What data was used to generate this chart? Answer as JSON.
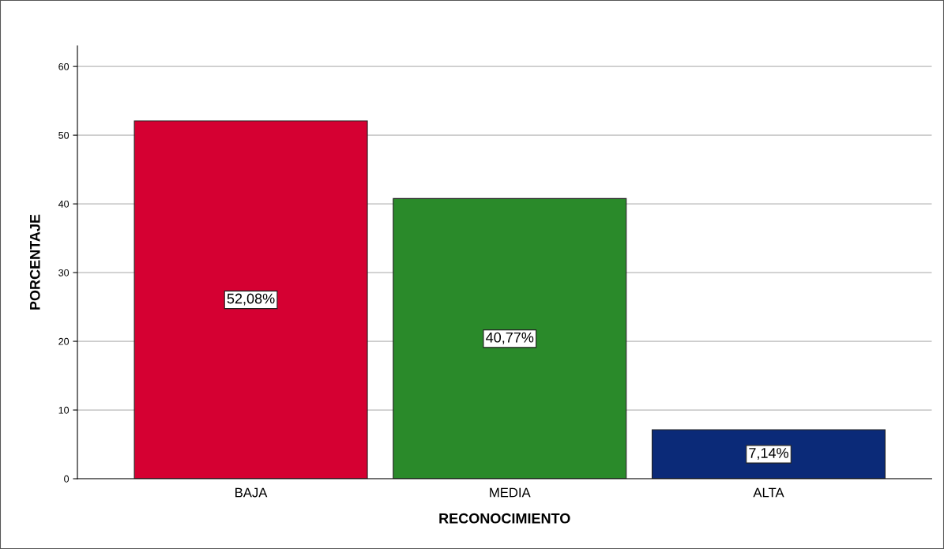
{
  "chart_data": {
    "type": "bar",
    "xlabel": "RECONOCIMIENTO",
    "ylabel": "PORCENTAJE",
    "categories": [
      "BAJA",
      "MEDIA",
      "ALTA"
    ],
    "values": [
      52.08,
      40.77,
      7.14
    ],
    "colors": [
      "#d50032",
      "#2a8a2a",
      "#0b2a78"
    ],
    "value_labels": [
      "52,08%",
      "40,77%",
      "7,14%"
    ],
    "ylim": [
      0,
      63
    ],
    "yticks": [
      0,
      10,
      20,
      30,
      40,
      50,
      60
    ],
    "grid": "y",
    "legend": false
  }
}
